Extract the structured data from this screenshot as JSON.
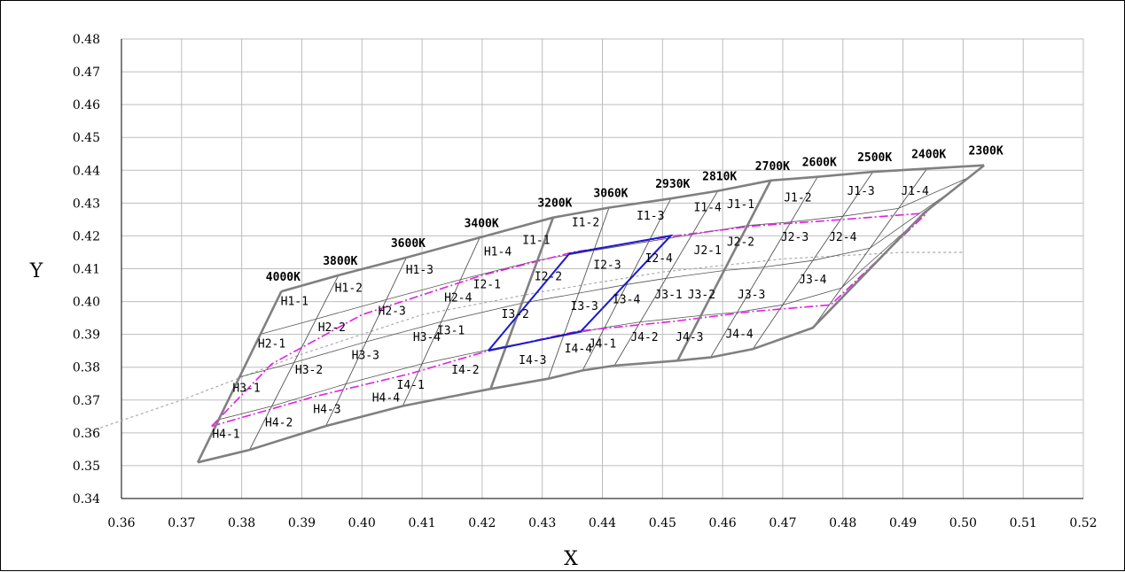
{
  "chart_data": {
    "type": "line",
    "title": "",
    "xlabel": "X",
    "ylabel": "Y",
    "xlim": [
      0.36,
      0.52
    ],
    "ylim": [
      0.34,
      0.48
    ],
    "x_ticks": [
      "0.36",
      "0.37",
      "0.38",
      "0.39",
      "0.40",
      "0.41",
      "0.42",
      "0.43",
      "0.44",
      "0.45",
      "0.46",
      "0.47",
      "0.48",
      "0.49",
      "0.50",
      "0.51",
      "0.52"
    ],
    "y_ticks": [
      "0.34",
      "0.35",
      "0.36",
      "0.37",
      "0.38",
      "0.39",
      "0.40",
      "0.41",
      "0.42",
      "0.43",
      "0.44",
      "0.45",
      "0.46",
      "0.47",
      "0.48"
    ],
    "grid": true,
    "cct_points": [
      {
        "label": "4000K",
        "top": [
          0.3866,
          0.4031
        ],
        "bottom": [
          0.3727,
          0.351
        ]
      },
      {
        "label": "3800K",
        "top": [
          0.3961,
          0.408
        ],
        "bottom": [
          0.3813,
          0.3548
        ]
      },
      {
        "label": "3600K",
        "top": [
          0.4074,
          0.4134
        ],
        "bottom": [
          0.394,
          0.3621
        ]
      },
      {
        "label": "3400K",
        "top": [
          0.4196,
          0.4195
        ],
        "bottom": [
          0.4068,
          0.3682
        ]
      },
      {
        "label": "3200K",
        "top": [
          0.4318,
          0.4256
        ],
        "bottom": [
          0.4214,
          0.3734
        ]
      },
      {
        "label": "3060K",
        "top": [
          0.4411,
          0.4286
        ],
        "bottom": [
          0.431,
          0.3765
        ]
      },
      {
        "label": "2930K",
        "top": [
          0.4514,
          0.4314
        ],
        "bottom": [
          0.4367,
          0.379
        ]
      },
      {
        "label": "2810K",
        "top": [
          0.4592,
          0.4337
        ],
        "bottom": [
          0.442,
          0.3805
        ]
      },
      {
        "label": "2700K",
        "top": [
          0.468,
          0.4369
        ],
        "bottom": [
          0.4525,
          0.382
        ]
      },
      {
        "label": "2600K",
        "top": [
          0.4758,
          0.438
        ],
        "bottom": [
          0.458,
          0.383
        ]
      },
      {
        "label": "2500K",
        "top": [
          0.485,
          0.4395
        ],
        "bottom": [
          0.465,
          0.3855
        ]
      },
      {
        "label": "2400K",
        "top": [
          0.494,
          0.4405
        ],
        "bottom": [
          0.475,
          0.392
        ]
      },
      {
        "label": "2300K",
        "top": [
          0.5035,
          0.4415
        ],
        "bottom": [
          0.4935,
          0.427
        ]
      }
    ],
    "bins": [
      {
        "label": "H1-1",
        "x": 0.3888,
        "y": 0.399
      },
      {
        "label": "H1-2",
        "x": 0.3978,
        "y": 0.403
      },
      {
        "label": "H1-3",
        "x": 0.4096,
        "y": 0.4085
      },
      {
        "label": "H1-4",
        "x": 0.4226,
        "y": 0.414
      },
      {
        "label": "H2-1",
        "x": 0.385,
        "y": 0.386
      },
      {
        "label": "H2-2",
        "x": 0.395,
        "y": 0.391
      },
      {
        "label": "H2-3",
        "x": 0.405,
        "y": 0.396
      },
      {
        "label": "H2-4",
        "x": 0.416,
        "y": 0.4
      },
      {
        "label": "H3-1",
        "x": 0.3808,
        "y": 0.3725
      },
      {
        "label": "H3-2",
        "x": 0.3912,
        "y": 0.378
      },
      {
        "label": "H3-3",
        "x": 0.4006,
        "y": 0.3825
      },
      {
        "label": "H3-4",
        "x": 0.4108,
        "y": 0.388
      },
      {
        "label": "H4-1",
        "x": 0.3774,
        "y": 0.3585
      },
      {
        "label": "H4-2",
        "x": 0.3862,
        "y": 0.362
      },
      {
        "label": "H4-3",
        "x": 0.3942,
        "y": 0.366
      },
      {
        "label": "H4-4",
        "x": 0.404,
        "y": 0.3695
      },
      {
        "label": "I1-1",
        "x": 0.429,
        "y": 0.4175
      },
      {
        "label": "I1-2",
        "x": 0.4372,
        "y": 0.423
      },
      {
        "label": "I1-3",
        "x": 0.448,
        "y": 0.425
      },
      {
        "label": "I1-4",
        "x": 0.4575,
        "y": 0.4275
      },
      {
        "label": "I2-1",
        "x": 0.4208,
        "y": 0.404
      },
      {
        "label": "I2-2",
        "x": 0.431,
        "y": 0.4065
      },
      {
        "label": "I2-3",
        "x": 0.4408,
        "y": 0.41
      },
      {
        "label": "I2-4",
        "x": 0.4494,
        "y": 0.412
      },
      {
        "label": "I3-1",
        "x": 0.4148,
        "y": 0.39
      },
      {
        "label": "I3-2",
        "x": 0.4255,
        "y": 0.395
      },
      {
        "label": "I3-3",
        "x": 0.437,
        "y": 0.3975
      },
      {
        "label": "I3-4",
        "x": 0.444,
        "y": 0.3995
      },
      {
        "label": "I4-1",
        "x": 0.4081,
        "y": 0.3735
      },
      {
        "label": "I4-2",
        "x": 0.4172,
        "y": 0.378
      },
      {
        "label": "I4-3",
        "x": 0.4284,
        "y": 0.381
      },
      {
        "label": "I4-4",
        "x": 0.436,
        "y": 0.3845
      },
      {
        "label": "J1-1",
        "x": 0.463,
        "y": 0.4285
      },
      {
        "label": "J1-2",
        "x": 0.4725,
        "y": 0.4305
      },
      {
        "label": "J1-3",
        "x": 0.483,
        "y": 0.4325
      },
      {
        "label": "J1-4",
        "x": 0.492,
        "y": 0.4325
      },
      {
        "label": "J2-1",
        "x": 0.4575,
        "y": 0.4145
      },
      {
        "label": "J2-2",
        "x": 0.463,
        "y": 0.417
      },
      {
        "label": "J2-3",
        "x": 0.472,
        "y": 0.4185
      },
      {
        "label": "J2-4",
        "x": 0.48,
        "y": 0.4185
      },
      {
        "label": "J3-1",
        "x": 0.451,
        "y": 0.401
      },
      {
        "label": "J3-2",
        "x": 0.4565,
        "y": 0.401
      },
      {
        "label": "J3-3",
        "x": 0.4648,
        "y": 0.401
      },
      {
        "label": "J3-4",
        "x": 0.475,
        "y": 0.4055
      },
      {
        "label": "J4-1",
        "x": 0.44,
        "y": 0.386
      },
      {
        "label": "J4-2",
        "x": 0.447,
        "y": 0.388
      },
      {
        "label": "J4-3",
        "x": 0.4545,
        "y": 0.388
      },
      {
        "label": "J4-4",
        "x": 0.4628,
        "y": 0.389
      }
    ],
    "blackbody_curve": [
      [
        0.354,
        0.36
      ],
      [
        0.37,
        0.37
      ],
      [
        0.39,
        0.384
      ],
      [
        0.41,
        0.396
      ],
      [
        0.43,
        0.403
      ],
      [
        0.45,
        0.409
      ],
      [
        0.47,
        0.413
      ],
      [
        0.49,
        0.415
      ],
      [
        0.5,
        0.415
      ]
    ],
    "upper_locus": [
      [
        0.375,
        0.362
      ],
      [
        0.385,
        0.381
      ],
      [
        0.4,
        0.396
      ],
      [
        0.42,
        0.408
      ],
      [
        0.435,
        0.415
      ],
      [
        0.452,
        0.42
      ],
      [
        0.465,
        0.423
      ],
      [
        0.48,
        0.425
      ],
      [
        0.494,
        0.427
      ]
    ],
    "lower_locus": [
      [
        0.375,
        0.362
      ],
      [
        0.392,
        0.371
      ],
      [
        0.408,
        0.378
      ],
      [
        0.421,
        0.385
      ],
      [
        0.436,
        0.391
      ],
      [
        0.452,
        0.394
      ],
      [
        0.465,
        0.397
      ],
      [
        0.478,
        0.399
      ],
      [
        0.494,
        0.427
      ]
    ],
    "highlight_quadrangle": [
      [
        0.421,
        0.385
      ],
      [
        0.4345,
        0.4146
      ],
      [
        0.4514,
        0.4201
      ],
      [
        0.4364,
        0.3909
      ]
    ],
    "colors": {
      "grid": "#bdbdbd",
      "boundary": "#808080",
      "bin_lines": "#555555",
      "locus": "#e020e0",
      "highlight": "#1a1acd",
      "curve": "#aaaaaa"
    }
  }
}
